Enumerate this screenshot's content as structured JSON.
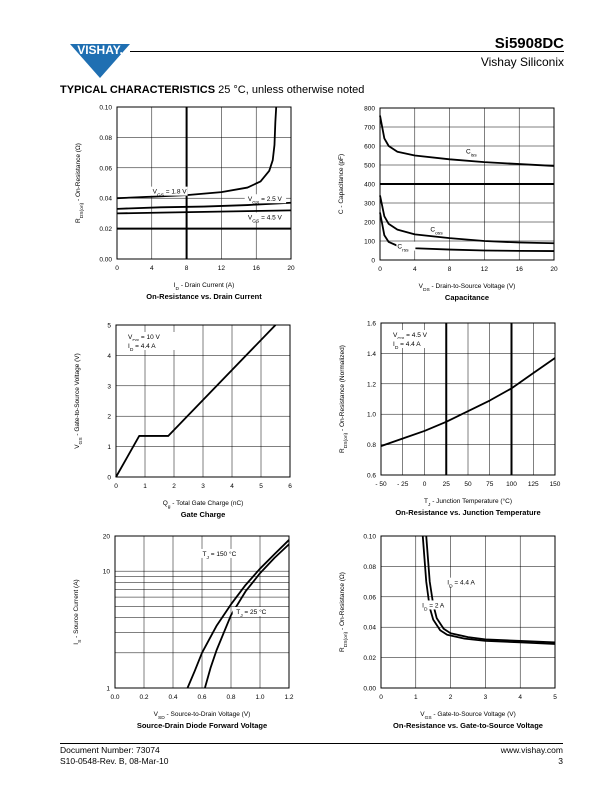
{
  "header": {
    "part_number": "Si5908DC",
    "company": "Vishay Siliconix",
    "logo_text": "VISHAY."
  },
  "section": {
    "title_bold": "TYPICAL CHARACTERISTICS",
    "title_rest": "25 °C, unless otherwise noted"
  },
  "footer": {
    "doc_number": "Document Number: 73074",
    "revision": "S10-0548-Rev. B, 08-Mar-10",
    "website": "www.vishay.com",
    "page": "3"
  },
  "chart_data": [
    {
      "id": "c1",
      "type": "line",
      "title": "On-Resistance vs. Drain Current",
      "xlabel": "I_D - Drain Current (A)",
      "ylabel": "R_DS(on) - On-Resistance (Ω)",
      "xlim": [
        0,
        20
      ],
      "ylim": [
        0,
        0.1
      ],
      "xticks": [
        "0",
        "4",
        "8",
        "12",
        "16",
        "20"
      ],
      "yticks": [
        "0.00",
        "0.02",
        "0.04",
        "0.06",
        "0.08",
        "0.10"
      ],
      "series": [
        {
          "name": "V_GS = 1.8 V",
          "x": [
            0,
            4,
            8,
            12,
            15,
            16.5,
            17.5,
            17.9,
            18.1,
            18.2,
            18.3
          ],
          "y": [
            0.04,
            0.041,
            0.042,
            0.044,
            0.047,
            0.051,
            0.058,
            0.065,
            0.075,
            0.09,
            0.1
          ]
        },
        {
          "name": "V_GS = 2.5 V",
          "x": [
            0,
            5,
            10,
            15,
            20
          ],
          "y": [
            0.033,
            0.034,
            0.0345,
            0.0355,
            0.037
          ]
        },
        {
          "name": "V_GS = 4.5 V",
          "x": [
            0,
            5,
            10,
            15,
            20
          ],
          "y": [
            0.03,
            0.0305,
            0.031,
            0.0315,
            0.032
          ]
        }
      ]
    },
    {
      "id": "c2",
      "type": "line",
      "title": "Capacitance",
      "xlabel": "V_DS - Drain-to-Source Voltage (V)",
      "ylabel": "C - Capacitance (pF)",
      "xlim": [
        0,
        20
      ],
      "ylim": [
        0,
        800
      ],
      "xticks": [
        "0",
        "4",
        "8",
        "12",
        "16",
        "20"
      ],
      "yticks": [
        "0",
        "100",
        "200",
        "300",
        "400",
        "500",
        "600",
        "700",
        "800"
      ],
      "series": [
        {
          "name": "C_iss",
          "x": [
            0,
            0.5,
            1,
            2,
            4,
            8,
            12,
            16,
            20
          ],
          "y": [
            760,
            640,
            600,
            570,
            550,
            530,
            515,
            505,
            495
          ]
        },
        {
          "name": "C_oss",
          "x": [
            0,
            0.5,
            1,
            2,
            4,
            8,
            12,
            16,
            20
          ],
          "y": [
            340,
            230,
            190,
            160,
            135,
            115,
            100,
            92,
            88
          ]
        },
        {
          "name": "C_rss",
          "x": [
            0,
            0.5,
            1,
            2,
            4,
            8,
            12,
            16,
            20
          ],
          "y": [
            250,
            130,
            95,
            75,
            62,
            55,
            50,
            48,
            47
          ]
        }
      ]
    },
    {
      "id": "c3",
      "type": "line",
      "title": "Gate Charge",
      "xlabel": "Q_g - Total Gate Charge (nC)",
      "ylabel": "V_GS - Gate-to-Source Voltage (V)",
      "xlim": [
        0,
        6
      ],
      "ylim": [
        0,
        5
      ],
      "xticks": [
        "0",
        "1",
        "2",
        "3",
        "4",
        "5",
        "6"
      ],
      "yticks": [
        "0",
        "1",
        "2",
        "3",
        "4",
        "5"
      ],
      "annotations": [
        "V_DS = 10 V",
        "I_D = 4.4 A"
      ],
      "series": [
        {
          "name": "",
          "x": [
            0,
            0.8,
            1.8,
            5.5
          ],
          "y": [
            0,
            1.35,
            1.35,
            5.0
          ]
        }
      ]
    },
    {
      "id": "c4",
      "type": "line",
      "title": "On-Resistance vs. Junction Temperature",
      "xlabel": "T_J - Junction Temperature (°C)",
      "ylabel": "R_DS(on) - On-Resistance (Normalized)",
      "xlim": [
        -50,
        150
      ],
      "ylim": [
        0.6,
        1.6
      ],
      "xticks": [
        "- 50",
        "- 25",
        "0",
        "25",
        "50",
        "75",
        "100",
        "125",
        "150"
      ],
      "yticks": [
        "0.6",
        "0.8",
        "1.0",
        "1.2",
        "1.4",
        "1.6"
      ],
      "annotations": [
        "V_GS = 4.5 V",
        "I_D = 4.4 A"
      ],
      "series": [
        {
          "name": "",
          "x": [
            -50,
            -25,
            0,
            25,
            50,
            75,
            100,
            125,
            150
          ],
          "y": [
            0.79,
            0.84,
            0.89,
            0.95,
            1.02,
            1.09,
            1.17,
            1.27,
            1.37
          ]
        }
      ]
    },
    {
      "id": "c5",
      "type": "line",
      "title": "Source-Drain Diode Forward Voltage",
      "xlabel": "V_SD - Source-to-Drain Voltage (V)",
      "ylabel": "I_S - Source Current (A)",
      "xlim": [
        0,
        1.2
      ],
      "ylim": [
        1,
        20
      ],
      "yscale": "log",
      "xticks": [
        "0.0",
        "0.2",
        "0.4",
        "0.6",
        "0.8",
        "1.0",
        "1.2"
      ],
      "yticks": [
        "1",
        "10",
        "20"
      ],
      "series": [
        {
          "name": "T_J = 150 °C",
          "x": [
            0.5,
            0.55,
            0.6,
            0.7,
            0.8,
            0.9,
            1.0,
            1.1,
            1.2
          ],
          "y": [
            1.0,
            1.4,
            2.0,
            3.4,
            5.2,
            7.6,
            10.5,
            14.0,
            18.5
          ]
        },
        {
          "name": "T_J = 25 °C",
          "x": [
            0.62,
            0.66,
            0.7,
            0.8,
            0.9,
            1.0,
            1.1,
            1.2
          ],
          "y": [
            1.0,
            1.5,
            2.1,
            4.2,
            6.7,
            9.6,
            13.0,
            17.0
          ]
        }
      ]
    },
    {
      "id": "c6",
      "type": "line",
      "title": "On-Resistance vs. Gate-to-Source Voltage",
      "xlabel": "V_GS - Gate-to-Source Voltage (V)",
      "ylabel": "R_DS(on) - On-Resistance (Ω)",
      "xlim": [
        0,
        5
      ],
      "ylim": [
        0,
        0.1
      ],
      "xticks": [
        "0",
        "1",
        "2",
        "3",
        "4",
        "5"
      ],
      "yticks": [
        "0.00",
        "0.02",
        "0.04",
        "0.06",
        "0.08",
        "0.10"
      ],
      "series": [
        {
          "name": "I_D = 4.4 A",
          "x": [
            1.3,
            1.35,
            1.4,
            1.5,
            1.6,
            1.8,
            2.0,
            2.5,
            3.0,
            4.0,
            5.0
          ],
          "y": [
            0.1,
            0.085,
            0.07,
            0.055,
            0.046,
            0.039,
            0.036,
            0.0335,
            0.032,
            0.031,
            0.03
          ]
        },
        {
          "name": "I_D = 2 A",
          "x": [
            1.2,
            1.25,
            1.3,
            1.4,
            1.5,
            1.7,
            1.9,
            2.4,
            3.0,
            4.0,
            5.0
          ],
          "y": [
            0.1,
            0.085,
            0.07,
            0.053,
            0.045,
            0.038,
            0.035,
            0.0325,
            0.031,
            0.03,
            0.029
          ]
        }
      ]
    }
  ]
}
